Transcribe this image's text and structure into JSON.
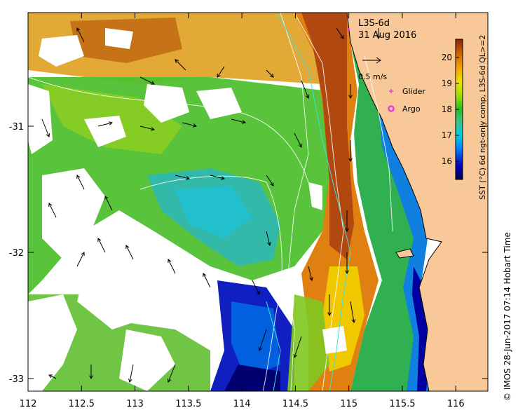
{
  "map": {
    "title": "L3S-6d",
    "date": "31 Aug 2016",
    "x_ticks": [
      "112",
      "112.5",
      "113",
      "113.5",
      "114",
      "114.5",
      "115",
      "115.5",
      "116"
    ],
    "y_ticks": [
      "-31",
      "-32",
      "-33"
    ],
    "lon_range": [
      112,
      116.3
    ],
    "lat_range": [
      -30.1,
      -33.1
    ],
    "lon_tick_values": [
      112,
      112.5,
      113,
      113.5,
      114,
      114.5,
      115,
      115.5,
      116
    ],
    "lat_tick_values": [
      -31,
      -32,
      -33
    ],
    "scale_arrow_label": "0.5 m/s",
    "legend": {
      "glider_label": "Glider",
      "argo_label": "Argo",
      "glider_color": "#e040e0",
      "argo_color": "#e040e0"
    },
    "colorbar": {
      "title": "SST (°C) 6d ngt-only comp, L3S-6d QL>=2",
      "ticks": [
        "16",
        "17",
        "18",
        "19",
        "20"
      ],
      "tick_values": [
        16,
        17,
        18,
        19,
        20
      ],
      "range": [
        15.3,
        20.7
      ],
      "colors": [
        "#00004a",
        "#0000c0",
        "#0080ff",
        "#00d0e0",
        "#40c080",
        "#20c020",
        "#a0e000",
        "#f0e000",
        "#f0a000",
        "#d06000",
        "#902000"
      ]
    },
    "land_color": "#f8c898",
    "credit": "© IMOS 28-Jun-2017 07:14 Hobart Time"
  }
}
